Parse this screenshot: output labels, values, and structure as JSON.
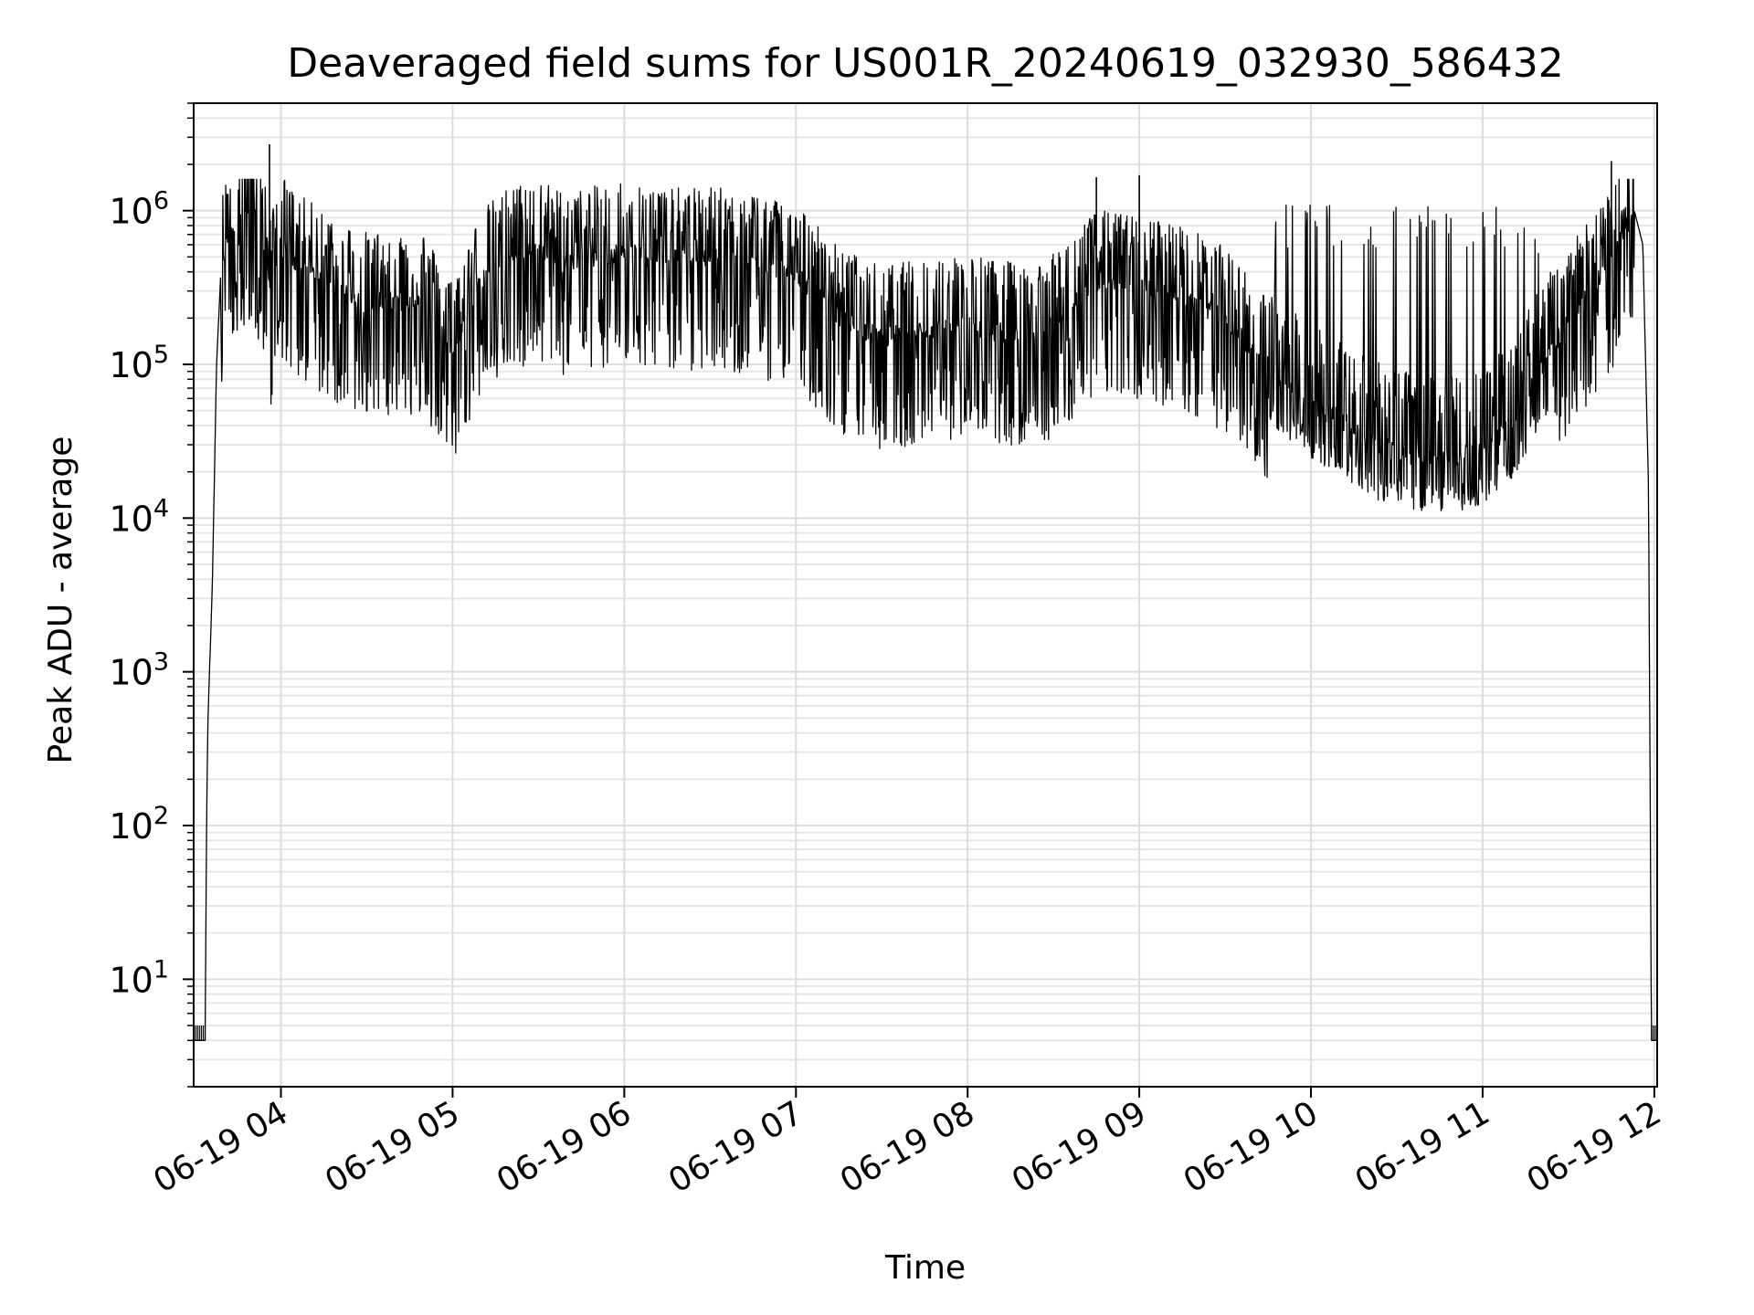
{
  "chart_data": {
    "type": "line",
    "title": "Deaveraged field sums for US001R_20240619_032930_586432",
    "xlabel": "Time",
    "ylabel": "Peak ADU - average",
    "yscale": "log",
    "xlim": [
      "2024-06-19 03:29:30",
      "2024-06-19 12:01:00"
    ],
    "ylim": [
      2,
      5000000
    ],
    "x_ticks": [
      "06-19 04",
      "06-19 05",
      "06-19 06",
      "06-19 07",
      "06-19 08",
      "06-19 09",
      "06-19 10",
      "06-19 11",
      "06-19 12"
    ],
    "y_ticks": [
      {
        "base": "10",
        "exp": "1"
      },
      {
        "base": "10",
        "exp": "2"
      },
      {
        "base": "10",
        "exp": "3"
      },
      {
        "base": "10",
        "exp": "4"
      },
      {
        "base": "10",
        "exp": "5"
      },
      {
        "base": "10",
        "exp": "6"
      }
    ],
    "grid": true,
    "line_color": "#000000",
    "series": [
      {
        "x": [
          "03:29:30",
          "03:33:30",
          "03:34:00",
          "03:34:30",
          "03:36:00",
          "03:37:30",
          "03:39:00",
          "03:42:00",
          "03:46:00",
          "03:50:00",
          "03:54:00",
          "03:56:30",
          "03:58:00",
          "04:00:00",
          "04:05:00",
          "04:10:00",
          "04:15:00",
          "04:20:00",
          "04:30:00",
          "04:40:00",
          "04:50:00",
          "05:00:00",
          "05:10:00",
          "05:20:00",
          "05:30:00",
          "05:40:00",
          "05:50:00",
          "06:00:00",
          "06:15:00",
          "06:30:00",
          "06:45:00",
          "07:00:00",
          "07:15:00",
          "07:30:00",
          "07:45:00",
          "08:00:00",
          "08:15:00",
          "08:30:00",
          "08:45:00",
          "09:00:00",
          "09:15:00",
          "09:30:00",
          "09:40:00",
          "09:50:00",
          "10:00:00",
          "10:10:00",
          "10:20:00",
          "10:30:00",
          "10:40:00",
          "10:50:00",
          "11:00:00",
          "11:10:00",
          "11:20:00",
          "11:30:00",
          "11:40:00",
          "11:45:00",
          "11:50:00",
          "11:53:00",
          "11:56:00",
          "11:58:00",
          "11:59:00",
          "12:01:00"
        ],
        "y": [
          4,
          4,
          100,
          500,
          3500,
          100000,
          400000,
          750000,
          950000,
          980000,
          600000,
          300000,
          500000,
          600000,
          450000,
          400000,
          350000,
          300000,
          250000,
          260000,
          250000,
          120000,
          350000,
          500000,
          550000,
          450000,
          500000,
          550000,
          480000,
          500000,
          450000,
          400000,
          200000,
          150000,
          170000,
          180000,
          160000,
          180000,
          350000,
          320000,
          280000,
          200000,
          120000,
          80000,
          55000,
          45000,
          32000,
          27000,
          25000,
          25000,
          28000,
          40000,
          90000,
          200000,
          350000,
          500000,
          800000,
          1000000,
          600000,
          15000,
          4,
          4
        ],
        "spikes": [
          {
            "x": "03:56:00",
            "y": 2700000
          },
          {
            "x": "11:45:00",
            "y": 2100000
          },
          {
            "x": "09:00:00",
            "y": 1700000
          },
          {
            "x": "08:45:00",
            "y": 1650000
          }
        ]
      }
    ]
  }
}
